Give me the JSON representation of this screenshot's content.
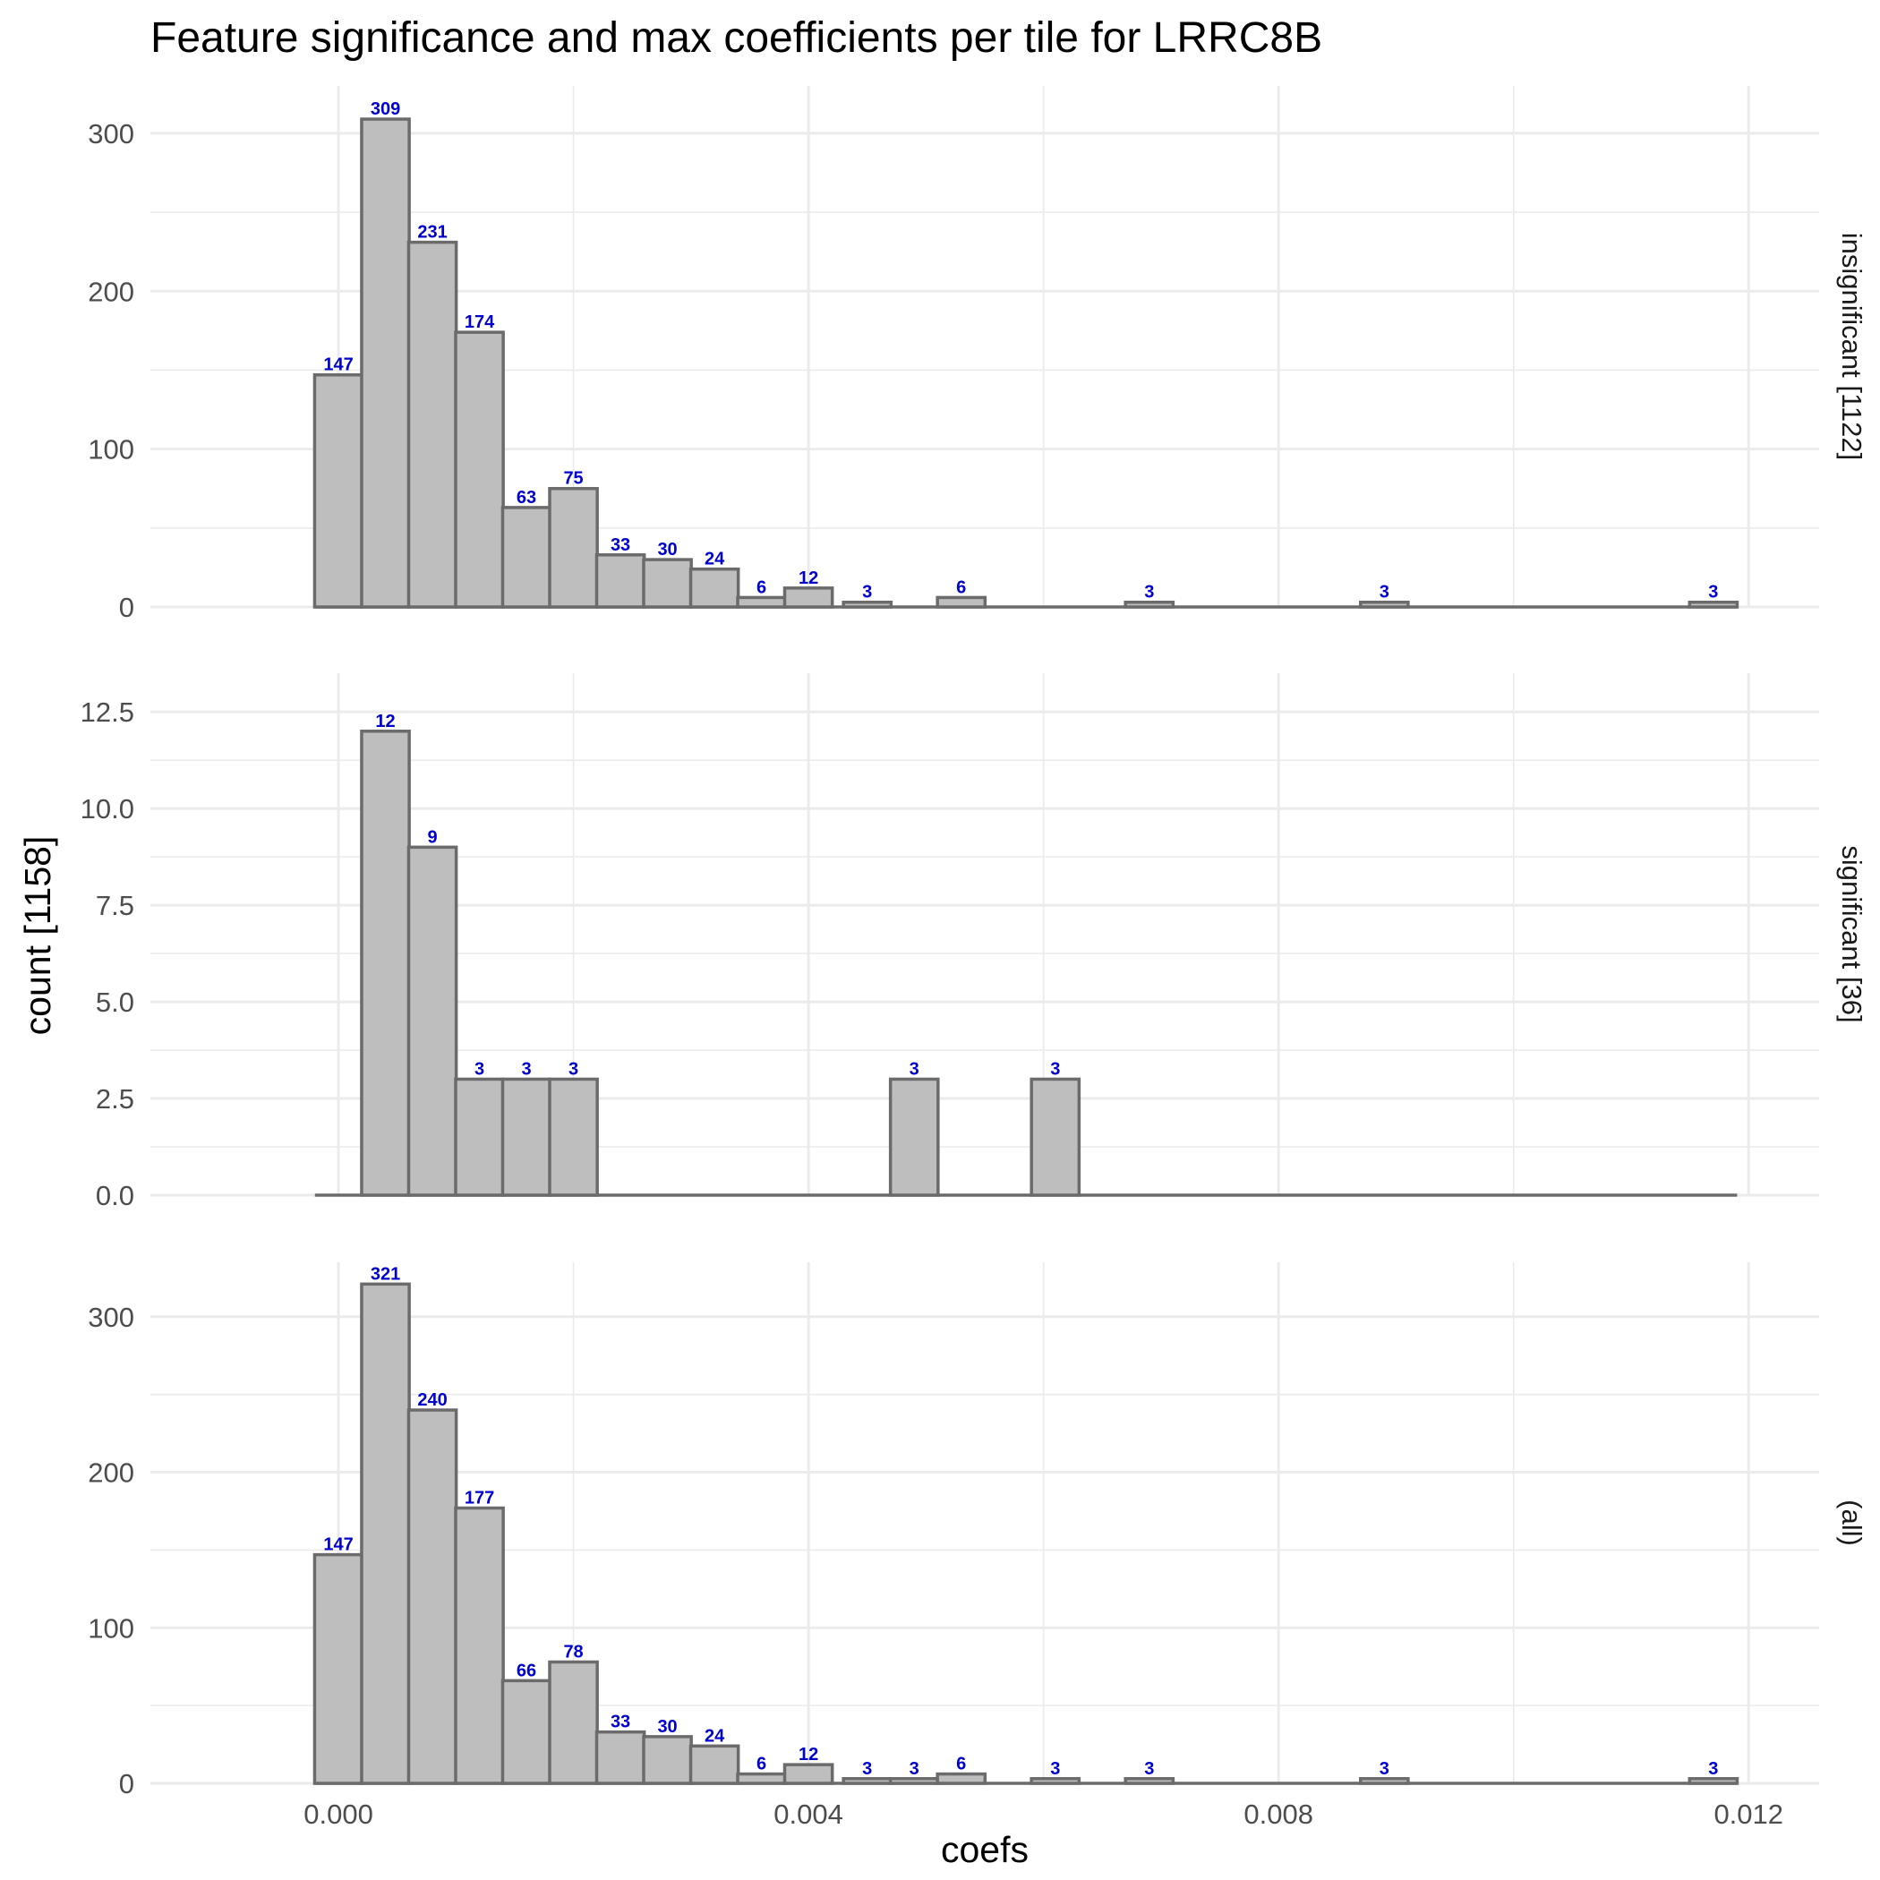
{
  "chart_data": {
    "type": "bar",
    "title": "Feature significance and max coefficients per tile for LRRC8B",
    "xlabel": "coefs",
    "ylabel": "count [1158]",
    "x_ticks": [
      0.0,
      0.004,
      0.008,
      0.012
    ],
    "x_tick_labels": [
      "0.000",
      "0.004",
      "0.008",
      "0.012"
    ],
    "xlim": [
      -0.0016,
      0.0126
    ],
    "bin_width": 0.000405,
    "bin_start": -0.0002,
    "grid": true,
    "panels": [
      {
        "strip_label": "insignificant [1122]",
        "ylim": [
          0,
          330
        ],
        "y_ticks": [
          0,
          100,
          200,
          300
        ],
        "y_tick_labels": [
          "0",
          "100",
          "200",
          "300"
        ],
        "y_minor": [
          50,
          150,
          250
        ],
        "bins": [
          {
            "x": 0.0,
            "count": 147
          },
          {
            "x": 0.0004,
            "count": 309
          },
          {
            "x": 0.0008,
            "count": 231
          },
          {
            "x": 0.0012,
            "count": 174
          },
          {
            "x": 0.0016,
            "count": 63
          },
          {
            "x": 0.002,
            "count": 75
          },
          {
            "x": 0.0024,
            "count": 33
          },
          {
            "x": 0.0028,
            "count": 30
          },
          {
            "x": 0.0032,
            "count": 24
          },
          {
            "x": 0.0036,
            "count": 6
          },
          {
            "x": 0.004,
            "count": 12
          },
          {
            "x": 0.0045,
            "count": 3
          },
          {
            "x": 0.0053,
            "count": 6
          },
          {
            "x": 0.0069,
            "count": 3
          },
          {
            "x": 0.0089,
            "count": 3
          },
          {
            "x": 0.0117,
            "count": 3
          }
        ]
      },
      {
        "strip_label": "significant [36]",
        "ylim": [
          0,
          13.5
        ],
        "y_ticks": [
          0,
          2.5,
          5,
          7.5,
          10,
          12.5
        ],
        "y_tick_labels": [
          "0.0",
          "2.5",
          "5.0",
          "7.5",
          "10.0",
          "12.5"
        ],
        "y_minor": [
          1.25,
          3.75,
          6.25,
          8.75,
          11.25
        ],
        "bins": [
          {
            "x": 0.0004,
            "count": 12
          },
          {
            "x": 0.0008,
            "count": 9
          },
          {
            "x": 0.0012,
            "count": 3
          },
          {
            "x": 0.0016,
            "count": 3
          },
          {
            "x": 0.002,
            "count": 3
          },
          {
            "x": 0.0049,
            "count": 3
          },
          {
            "x": 0.0061,
            "count": 3
          }
        ]
      },
      {
        "strip_label": "(all)",
        "ylim": [
          0,
          335
        ],
        "y_ticks": [
          0,
          100,
          200,
          300
        ],
        "y_tick_labels": [
          "0",
          "100",
          "200",
          "300"
        ],
        "y_minor": [
          50,
          150,
          250
        ],
        "bins": [
          {
            "x": 0.0,
            "count": 147
          },
          {
            "x": 0.0004,
            "count": 321
          },
          {
            "x": 0.0008,
            "count": 240
          },
          {
            "x": 0.0012,
            "count": 177
          },
          {
            "x": 0.0016,
            "count": 66
          },
          {
            "x": 0.002,
            "count": 78
          },
          {
            "x": 0.0024,
            "count": 33
          },
          {
            "x": 0.0028,
            "count": 30
          },
          {
            "x": 0.0032,
            "count": 24
          },
          {
            "x": 0.0036,
            "count": 6
          },
          {
            "x": 0.004,
            "count": 12
          },
          {
            "x": 0.0045,
            "count": 3
          },
          {
            "x": 0.0049,
            "count": 3
          },
          {
            "x": 0.0053,
            "count": 6
          },
          {
            "x": 0.0061,
            "count": 3
          },
          {
            "x": 0.0069,
            "count": 3
          },
          {
            "x": 0.0089,
            "count": 3
          },
          {
            "x": 0.0117,
            "count": 3
          }
        ]
      }
    ],
    "colors": {
      "bar_fill": "#bebebe",
      "bar_outline": "#6b6b6b",
      "label": "#0000cc",
      "grid": "#ebebeb"
    }
  }
}
